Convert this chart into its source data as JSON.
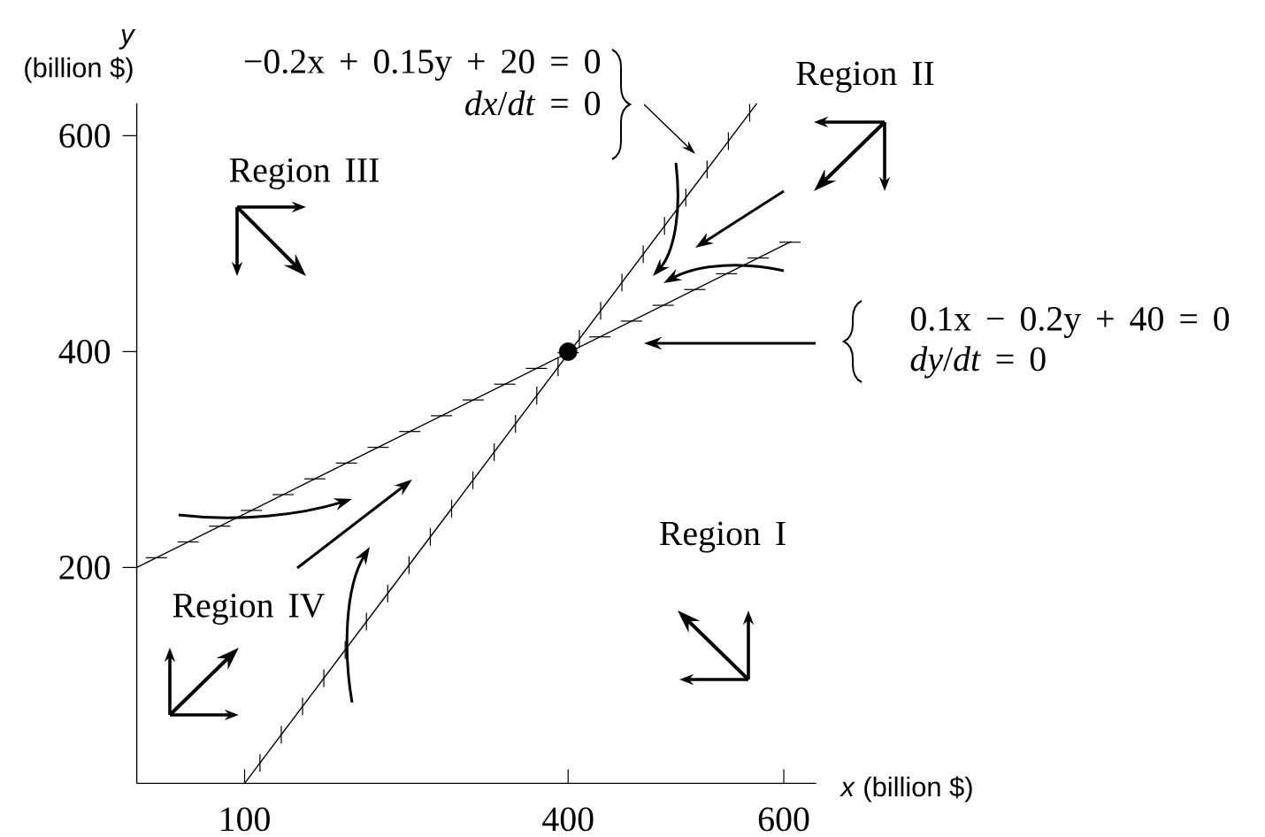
{
  "chart_data": {
    "type": "line",
    "xlabel": "*x* (billion $)",
    "ylabel": "*y* (billion $)",
    "xlim": [
      0,
      630
    ],
    "ylim": [
      0,
      630
    ],
    "xticks": [
      100,
      400,
      600
    ],
    "yticks": [
      200,
      400,
      600
    ],
    "series": [
      {
        "color": "#000000",
        "x": [
          100,
          575
        ],
        "values": [
          0,
          630
        ]
      },
      {
        "color": "#000000",
        "x": [
          0,
          607
        ],
        "values": [
          200,
          502
        ]
      },
      {
        "type": "scatter",
        "color": "#000000",
        "marker": "circle",
        "x": [
          400
        ],
        "values": [
          400
        ]
      }
    ],
    "annotations": [
      "−0.2x + 0.15y + 20 = 0",
      "Region II",
      "*dx*/*dt* = 0",
      "Region III",
      "0.1x − 0.2y + 40 = 0",
      "*dy*/*dt* = 0",
      "Region I",
      "Region IV"
    ]
  }
}
